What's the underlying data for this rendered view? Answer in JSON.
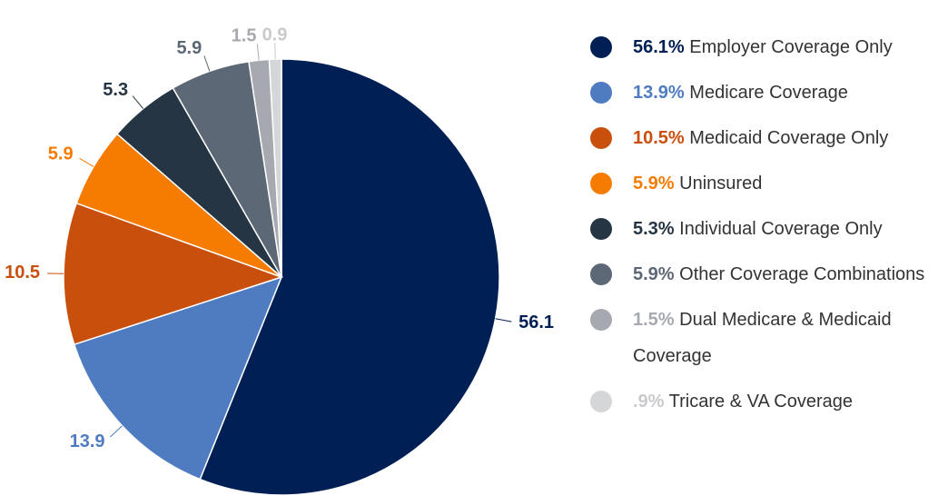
{
  "chart_data": {
    "type": "pie",
    "categories": [
      "Employer Coverage Only",
      "Medicare Coverage",
      "Medicaid Coverage Only",
      "Uninsured",
      "Individual Coverage Only",
      "Other Coverage Combinations",
      "Dual Medicare & Medicaid Coverage",
      "Tricare & VA Coverage"
    ],
    "values": [
      56.1,
      13.9,
      10.5,
      5.9,
      5.3,
      5.9,
      1.5,
      0.9
    ],
    "value_labels": [
      "56.1%",
      "13.9%",
      "10.5%",
      "5.9%",
      "5.3%",
      "5.9%",
      "1.5%",
      ".9%"
    ],
    "colors": [
      "#001f54",
      "#4f7bc0",
      "#c94f0c",
      "#f57c00",
      "#253544",
      "#5c6875",
      "#a6aab0",
      "#d4d6d8"
    ],
    "legend": "right"
  }
}
